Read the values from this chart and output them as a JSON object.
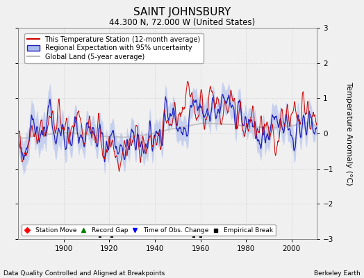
{
  "title": "SAINT JOHNSBURY",
  "subtitle": "44.300 N, 72.000 W (United States)",
  "xlabel_bottom": "Data Quality Controlled and Aligned at Breakpoints",
  "xlabel_right": "Berkeley Earth",
  "ylabel": "Temperature Anomaly (°C)",
  "xlim": [
    1880,
    2011
  ],
  "ylim": [
    -3,
    3
  ],
  "yticks": [
    -3,
    -2,
    -1,
    0,
    1,
    2,
    3
  ],
  "xticks": [
    1900,
    1920,
    1940,
    1960,
    1980,
    2000
  ],
  "bg_color": "#f0f0f0",
  "legend_entries": [
    {
      "label": "This Temperature Station (12-month average)",
      "color": "#cc0000",
      "lw": 1.0
    },
    {
      "label": "Regional Expectation with 95% uncertainty",
      "color": "#4444cc",
      "lw": 1.2
    },
    {
      "label": "Global Land (5-year average)",
      "color": "#bbbbbb",
      "lw": 1.5
    }
  ],
  "marker_legend": [
    {
      "marker": "D",
      "color": "red",
      "label": "Station Move"
    },
    {
      "marker": "^",
      "color": "green",
      "label": "Record Gap"
    },
    {
      "marker": "v",
      "color": "blue",
      "label": "Time of Obs. Change"
    },
    {
      "marker": "s",
      "color": "black",
      "label": "Empirical Break"
    }
  ],
  "empirical_breaks": [
    1916,
    1921,
    1957,
    1960
  ],
  "station_moves": [],
  "record_gaps": [],
  "obs_changes": []
}
